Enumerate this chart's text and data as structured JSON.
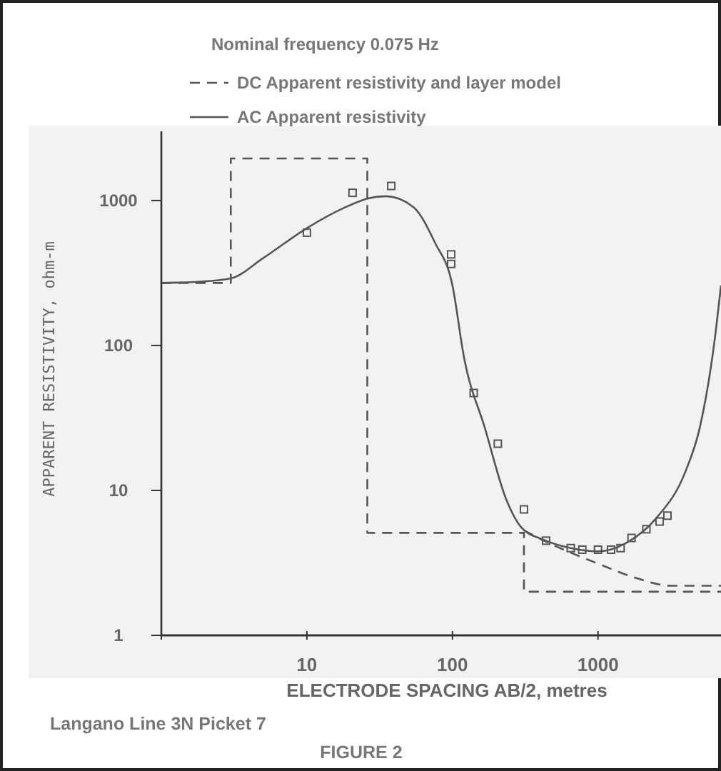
{
  "chart_data": {
    "type": "line",
    "legend_title": "Nominal frequency 0.075 Hz",
    "xlabel": "ELECTRODE SPACING AB/2, metres",
    "ylabel": "APPARENT RESISTIVITY, ohm-m",
    "annotations": [
      "Langano Line 3N Picket 7",
      "FIGURE 2"
    ],
    "log": "xy",
    "grid": false,
    "legend": "top",
    "xlim": [
      1,
      7000
    ],
    "xticks": [
      {
        "value": 1,
        "label": null
      },
      10,
      100,
      1000
    ],
    "ylim": [
      1,
      3000
    ],
    "yticks": [
      1,
      10,
      100,
      1000
    ],
    "series": [
      {
        "name": "DC Apparent resistivity and layer model",
        "type": "step",
        "color": "#555555",
        "line_style": "dashed",
        "x": [
          1,
          3,
          26,
          310,
          7000
        ],
        "values": [
          270,
          1950,
          5.1,
          2.0,
          2.0
        ]
      },
      {
        "type": "line",
        "color": "#555555",
        "line_style": "dashed",
        "x": [
          310,
          390,
          1020,
          1800,
          3150,
          7000
        ],
        "values": [
          5.3,
          4.7,
          3.1,
          2.5,
          2.2,
          2.2
        ]
      },
      {
        "name": "AC Apparent resistivity",
        "color": "#555555",
        "line_style": "solid",
        "x": [
          1,
          1.8,
          3,
          5,
          10,
          18,
          26,
          35,
          54,
          76,
          100,
          120,
          167,
          235,
          300,
          415,
          650,
          1000,
          1600,
          2500,
          4000,
          5000,
          6300,
          7000
        ],
        "values": [
          270,
          275,
          290,
          400,
          645,
          890,
          1030,
          1070,
          900,
          510,
          260,
          83,
          27,
          8.6,
          5.5,
          4.6,
          4.0,
          3.8,
          4.4,
          6.4,
          13.6,
          27,
          105,
          260
        ]
      },
      {
        "type": "scatter",
        "color": "#555555",
        "marker": "square",
        "x": [
          10,
          20.6,
          38,
          98,
          98,
          140,
          205,
          310,
          440,
          650,
          780,
          1000,
          1230,
          1430,
          1700,
          2150,
          2650,
          3000
        ],
        "values": [
          600,
          1130,
          1260,
          425,
          365,
          47,
          21,
          7.4,
          4.5,
          4.0,
          3.9,
          3.9,
          3.9,
          4.0,
          4.7,
          5.4,
          6.1,
          6.7
        ]
      }
    ]
  }
}
